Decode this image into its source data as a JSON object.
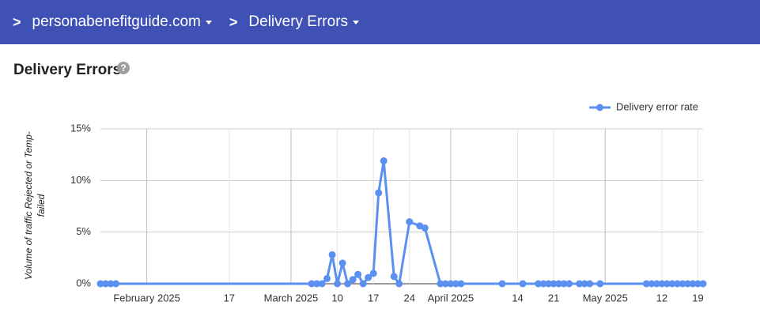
{
  "header": {
    "domain": "personabenefitguide.com",
    "page": "Delivery Errors"
  },
  "section_title": "Delivery Errors",
  "chart_data": {
    "type": "line",
    "y_label": "Volume of traffic Rejected or Temp-failed",
    "xlim": [
      "2025-01-23",
      "2025-05-20"
    ],
    "xticks": [
      {
        "value": "2025-02-01",
        "label": "February 2025"
      },
      {
        "value": "2025-02-17",
        "label": "17"
      },
      {
        "value": "2025-03-01",
        "label": "March 2025"
      },
      {
        "value": "2025-03-10",
        "label": "10"
      },
      {
        "value": "2025-03-17",
        "label": "17"
      },
      {
        "value": "2025-03-24",
        "label": "24"
      },
      {
        "value": "2025-04-01",
        "label": "April 2025"
      },
      {
        "value": "2025-04-14",
        "label": "14"
      },
      {
        "value": "2025-04-21",
        "label": "21"
      },
      {
        "value": "2025-05-01",
        "label": "May 2025"
      },
      {
        "value": "2025-05-12",
        "label": "12"
      },
      {
        "value": "2025-05-19",
        "label": "19"
      }
    ],
    "ylim": [
      0,
      15
    ],
    "yticks": [
      {
        "value": 0,
        "label": "0%"
      },
      {
        "value": 5,
        "label": "5%"
      },
      {
        "value": 10,
        "label": "10%"
      },
      {
        "value": 15,
        "label": "15%"
      }
    ],
    "grid": true,
    "legend": "top-right",
    "x": [
      "2025-01-23",
      "2025-01-24",
      "2025-01-25",
      "2025-01-26",
      "2025-03-05",
      "2025-03-06",
      "2025-03-07",
      "2025-03-08",
      "2025-03-09",
      "2025-03-10",
      "2025-03-11",
      "2025-03-12",
      "2025-03-13",
      "2025-03-14",
      "2025-03-15",
      "2025-03-16",
      "2025-03-17",
      "2025-03-18",
      "2025-03-19",
      "2025-03-21",
      "2025-03-22",
      "2025-03-24",
      "2025-03-26",
      "2025-03-27",
      "2025-03-30",
      "2025-03-31",
      "2025-04-01",
      "2025-04-02",
      "2025-04-03",
      "2025-04-11",
      "2025-04-15",
      "2025-04-18",
      "2025-04-19",
      "2025-04-20",
      "2025-04-21",
      "2025-04-22",
      "2025-04-23",
      "2025-04-24",
      "2025-04-26",
      "2025-04-27",
      "2025-04-28",
      "2025-04-30",
      "2025-05-09",
      "2025-05-10",
      "2025-05-11",
      "2025-05-12",
      "2025-05-13",
      "2025-05-14",
      "2025-05-15",
      "2025-05-16",
      "2025-05-17",
      "2025-05-18",
      "2025-05-19",
      "2025-05-20"
    ],
    "series": [
      {
        "name": "Delivery error rate",
        "color": "#5b8ff0",
        "values": [
          0,
          0,
          0,
          0,
          0,
          0,
          0,
          0.5,
          2.8,
          0,
          2.0,
          0,
          0.4,
          0.9,
          0,
          0.6,
          1.0,
          8.8,
          11.9,
          0.7,
          0,
          6.0,
          5.6,
          5.4,
          0,
          0,
          0,
          0,
          0,
          0,
          0,
          0,
          0,
          0,
          0,
          0,
          0,
          0,
          0,
          0,
          0,
          0,
          0,
          0,
          0,
          0,
          0,
          0,
          0,
          0,
          0,
          0,
          0,
          0
        ]
      }
    ]
  }
}
